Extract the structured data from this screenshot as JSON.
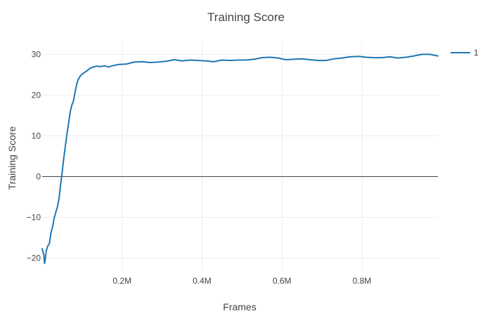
{
  "chart_data": {
    "type": "line",
    "title": "Training Score",
    "xlabel": "Frames",
    "ylabel": "Training Score",
    "xlim": [
      0,
      990000
    ],
    "ylim": [
      -23,
      33
    ],
    "x_ticks": [
      200000,
      400000,
      600000,
      800000
    ],
    "x_tick_labels": [
      "0.2M",
      "0.4M",
      "0.6M",
      "0.8M"
    ],
    "y_ticks": [
      -20,
      -10,
      0,
      10,
      20,
      30
    ],
    "y_tick_labels": [
      "−20",
      "−10",
      "0",
      "10",
      "20",
      "30"
    ],
    "grid": true,
    "zero_line": true,
    "legend": "top-right",
    "colors": {
      "series": "#1f77b4",
      "grid": "#eeeeee",
      "zero_line": "#444444",
      "text": "#444444"
    },
    "series": [
      {
        "name": "1",
        "x": [
          0,
          4000,
          6000,
          8000,
          10000,
          14000,
          18000,
          22000,
          26000,
          30000,
          34000,
          38000,
          42000,
          46000,
          50000,
          54000,
          58000,
          62000,
          66000,
          70000,
          74000,
          78000,
          82000,
          86000,
          90000,
          96000,
          102000,
          108000,
          114000,
          120000,
          128000,
          136000,
          146000,
          156000,
          166000,
          176000,
          190000,
          210000,
          230000,
          250000,
          270000,
          290000,
          310000,
          330000,
          350000,
          370000,
          390000,
          410000,
          430000,
          450000,
          470000,
          490000,
          510000,
          530000,
          550000,
          570000,
          590000,
          610000,
          630000,
          650000,
          670000,
          690000,
          710000,
          730000,
          750000,
          770000,
          790000,
          810000,
          830000,
          850000,
          870000,
          890000,
          910000,
          930000,
          950000,
          970000,
          990000
        ],
        "y": [
          -17.7,
          -19.2,
          -21.3,
          -20.2,
          -18.3,
          -17.0,
          -16.5,
          -13.8,
          -12.3,
          -10.2,
          -8.8,
          -7.5,
          -5.5,
          -2.0,
          1.0,
          4.5,
          7.5,
          10.5,
          13.0,
          15.8,
          17.5,
          18.5,
          20.5,
          22.5,
          23.8,
          24.8,
          25.3,
          25.7,
          26.1,
          26.6,
          26.9,
          27.1,
          27.0,
          27.2,
          26.9,
          27.2,
          27.5,
          27.6,
          28.1,
          28.2,
          28.0,
          28.1,
          28.3,
          28.7,
          28.4,
          28.6,
          28.5,
          28.4,
          28.2,
          28.6,
          28.5,
          28.6,
          28.6,
          28.8,
          29.2,
          29.3,
          29.1,
          28.7,
          28.8,
          28.9,
          28.7,
          28.5,
          28.5,
          28.9,
          29.1,
          29.4,
          29.5,
          29.3,
          29.2,
          29.2,
          29.4,
          29.1,
          29.3,
          29.6,
          30.0,
          30.0,
          29.6
        ]
      }
    ]
  }
}
